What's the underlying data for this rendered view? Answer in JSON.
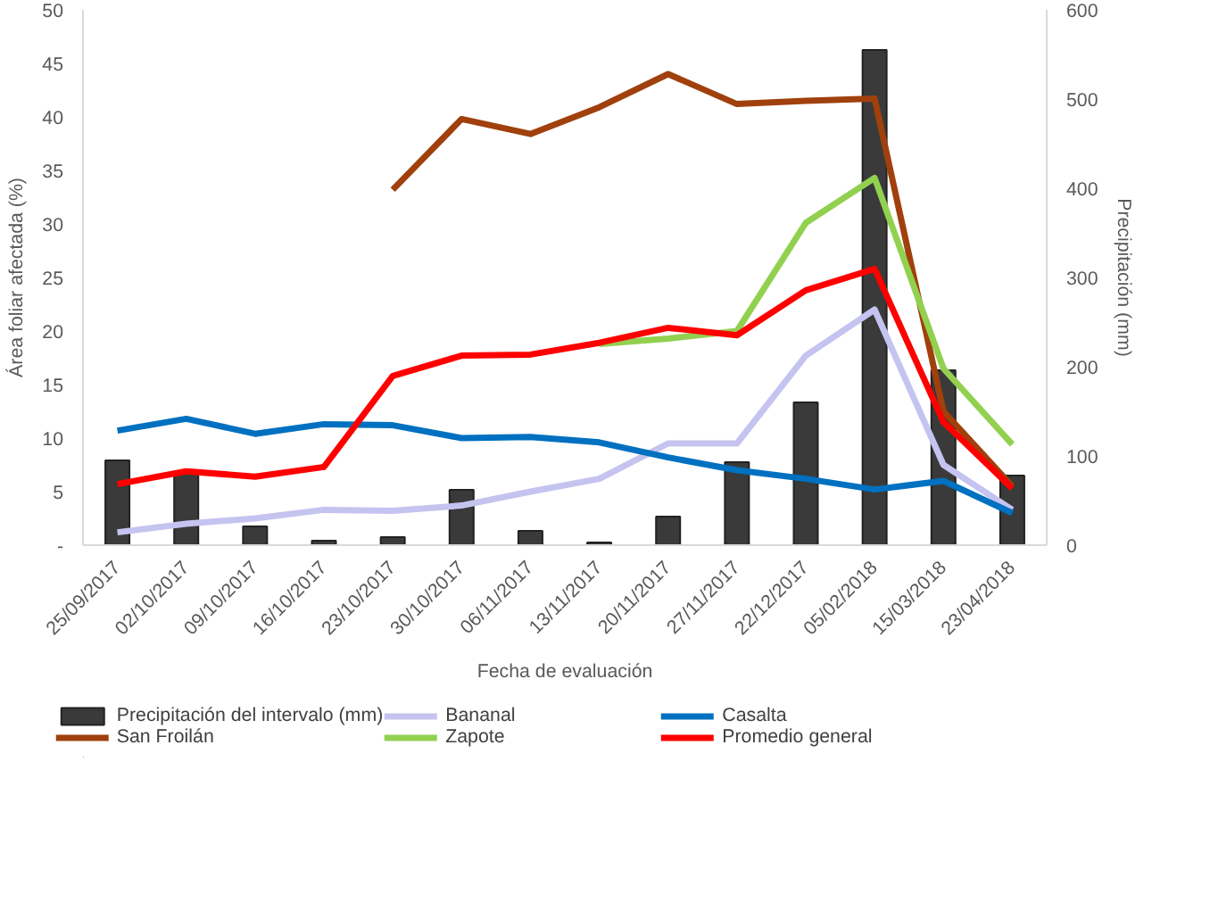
{
  "chart_data": {
    "type": "line",
    "xlabel": "Fecha de evaluación",
    "ylabel": "Área foliar afectada (%)",
    "y2label": "Precipitación (mm)",
    "categories": [
      "25/09/2017",
      "02/10/2017",
      "09/10/2017",
      "16/10/2017",
      "23/10/2017",
      "30/10/2017",
      "06/11/2017",
      "13/11/2017",
      "20/11/2017",
      "27/11/2017",
      "22/12/2017",
      "05/02/2018",
      "15/03/2018",
      "23/04/2018"
    ],
    "ylim": [
      0,
      50
    ],
    "yticks": [
      {
        "value": 0,
        "label": "-"
      },
      5,
      10,
      15,
      20,
      25,
      30,
      35,
      40,
      45,
      50
    ],
    "y2lim": [
      0,
      600
    ],
    "y2ticks": [
      0,
      100,
      200,
      300,
      400,
      500,
      600
    ],
    "grid": false,
    "legend": "bottom",
    "line_style": "solid",
    "series": [
      {
        "name": "Precipitación del intervalo (mm)",
        "type": "bar",
        "axis": "y2",
        "color": "#3a3a3a",
        "values": [
          95,
          83,
          21,
          5,
          9,
          62,
          16,
          3,
          32,
          93,
          160,
          555,
          196,
          78
        ]
      },
      {
        "name": "Bananal",
        "color": "#c5c3ef",
        "values": [
          1.2,
          2.0,
          2.5,
          3.3,
          3.2,
          3.7,
          5.0,
          6.2,
          9.5,
          9.5,
          17.7,
          22.0,
          7.5,
          3.3
        ]
      },
      {
        "name": "Casalta",
        "color": "#0070c0",
        "values": [
          10.7,
          11.8,
          10.4,
          11.3,
          11.2,
          10.0,
          10.1,
          9.6,
          8.2,
          7.0,
          6.2,
          5.2,
          6.0,
          3.0
        ]
      },
      {
        "name": "San Froilán",
        "color": "#a0400c",
        "values": [
          null,
          null,
          null,
          null,
          33.2,
          39.8,
          38.4,
          40.9,
          44.0,
          41.2,
          41.5,
          41.7,
          12.5,
          5.5
        ]
      },
      {
        "name": "Zapote",
        "color": "#92d050",
        "values": [
          null,
          null,
          null,
          null,
          null,
          null,
          null,
          18.8,
          19.3,
          20.0,
          30.1,
          34.3,
          16.5,
          9.4
        ]
      },
      {
        "name": "Promedio general",
        "color": "#ff0000",
        "values": [
          5.7,
          6.9,
          6.4,
          7.3,
          15.8,
          17.7,
          17.8,
          18.9,
          20.3,
          19.6,
          23.8,
          25.8,
          11.5,
          5.3
        ]
      }
    ]
  }
}
